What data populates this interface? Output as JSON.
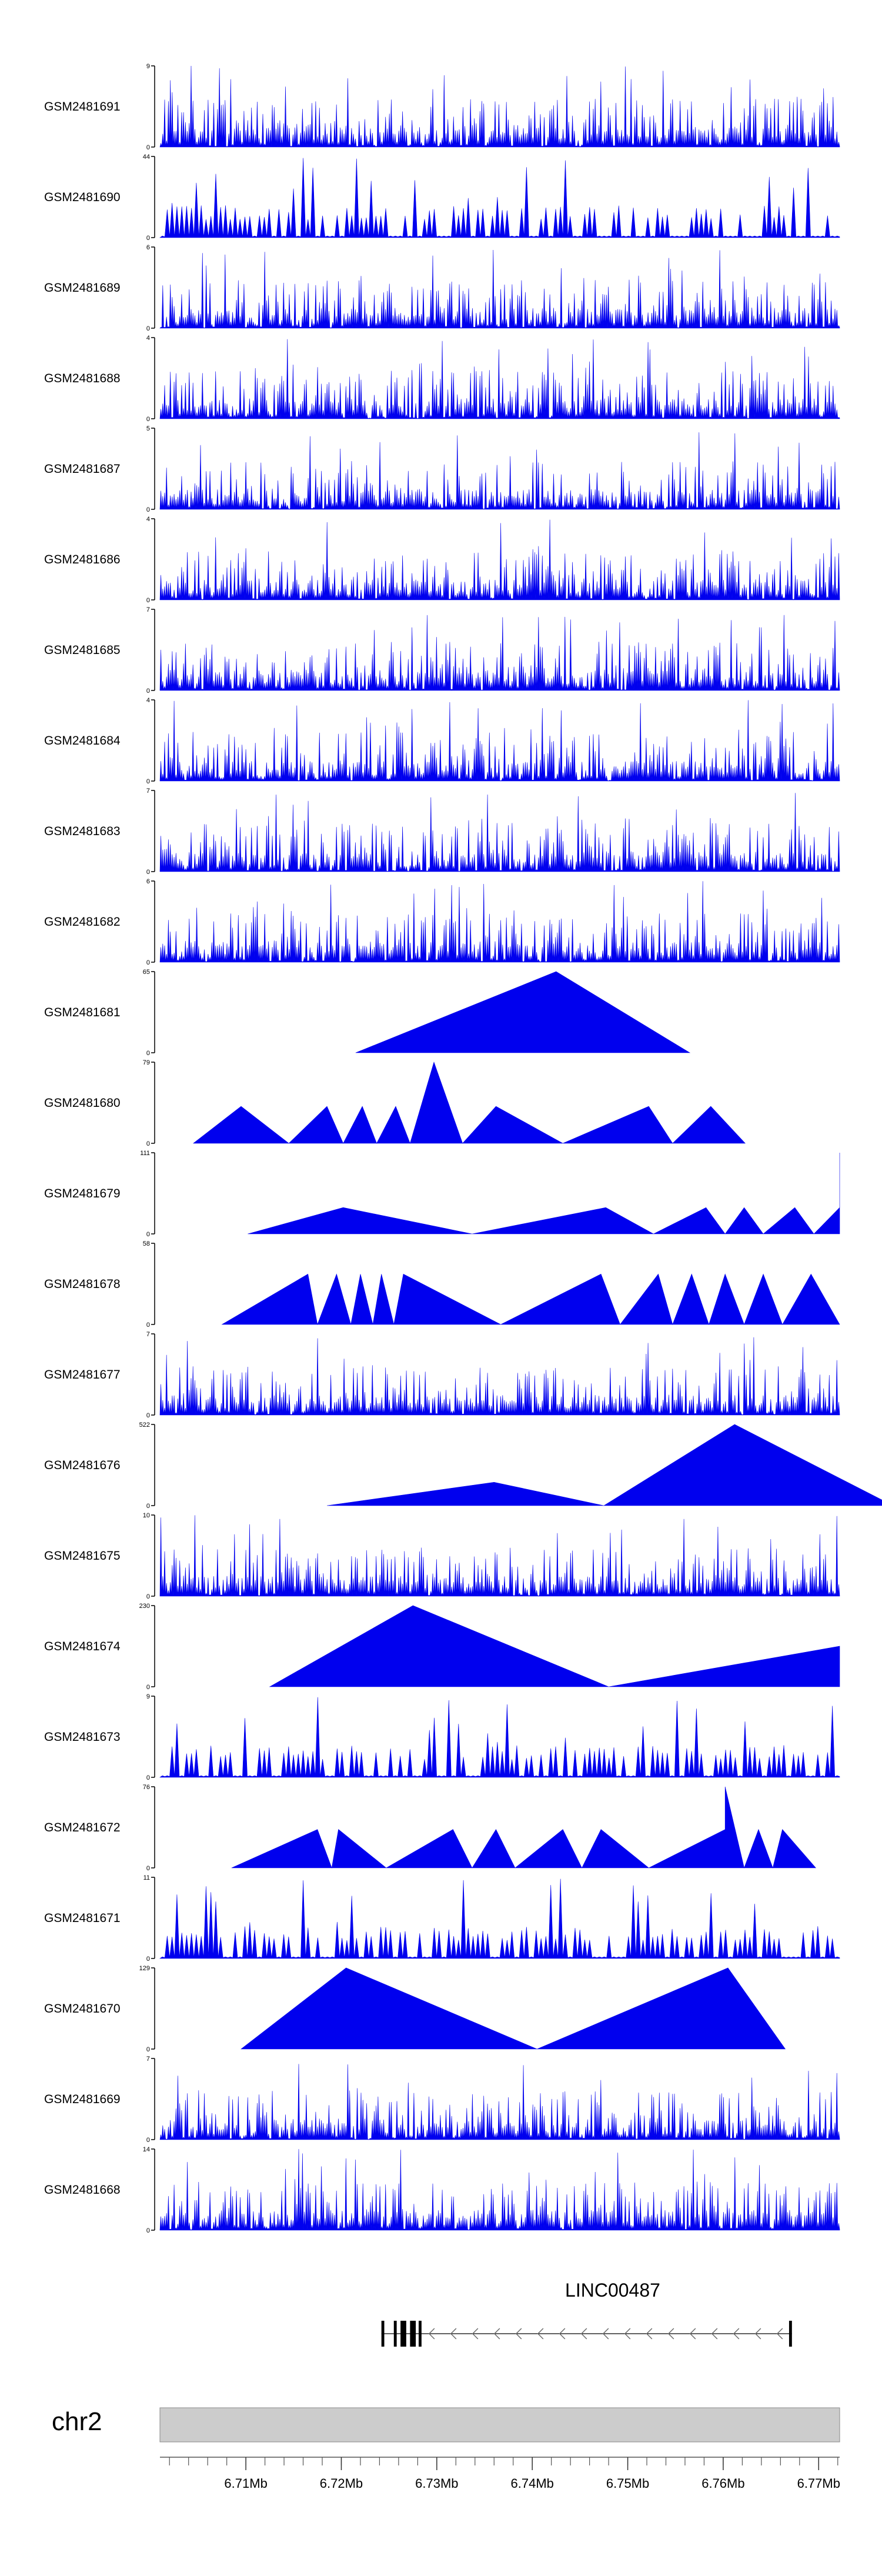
{
  "chart_data": {
    "type": "area",
    "colors": {
      "signal": "#0000ee",
      "axis": "#000000",
      "ideogram": "#cccccc",
      "gene": "#000000"
    },
    "tracks": [
      {
        "label": "GSM2481691",
        "ymax": "9",
        "ymin": "0",
        "max": 9,
        "style": "dense",
        "seed": 11
      },
      {
        "label": "GSM2481690",
        "ymax": "44",
        "ymin": "0",
        "max": 44,
        "style": "sparse",
        "seed": 12
      },
      {
        "label": "GSM2481689",
        "ymax": "6",
        "ymin": "0",
        "max": 6,
        "style": "dense",
        "seed": 13
      },
      {
        "label": "GSM2481688",
        "ymax": "4",
        "ymin": "0",
        "max": 4,
        "style": "dense",
        "seed": 14
      },
      {
        "label": "GSM2481687",
        "ymax": "5",
        "ymin": "0",
        "max": 5,
        "style": "dense",
        "seed": 15
      },
      {
        "label": "GSM2481686",
        "ymax": "4",
        "ymin": "0",
        "max": 4,
        "style": "dense",
        "seed": 16
      },
      {
        "label": "GSM2481685",
        "ymax": "7",
        "ymin": "0",
        "max": 7,
        "style": "dense",
        "seed": 17
      },
      {
        "label": "GSM2481684",
        "ymax": "4",
        "ymin": "0",
        "max": 4,
        "style": "dense",
        "seed": 18
      },
      {
        "label": "GSM2481683",
        "ymax": "7",
        "ymin": "0",
        "max": 7,
        "style": "dense",
        "seed": 19
      },
      {
        "label": "GSM2481682",
        "ymax": "6",
        "ymin": "0",
        "max": 6,
        "style": "dense",
        "seed": 20
      },
      {
        "label": "GSM2481681",
        "ymax": "65",
        "ymin": "0",
        "max": 65,
        "style": "peaks",
        "vertices": [
          [
            6.7215,
            0
          ],
          [
            6.7425,
            65
          ],
          [
            6.7565,
            0
          ]
        ]
      },
      {
        "label": "GSM2481680",
        "ymax": "79",
        "ymin": "0",
        "max": 79,
        "style": "peaks",
        "vertices": [
          [
            6.7045,
            0
          ],
          [
            6.7095,
            36
          ],
          [
            6.7145,
            0
          ],
          [
            6.7185,
            36
          ],
          [
            6.7202,
            0
          ],
          [
            6.7222,
            36
          ],
          [
            6.7237,
            0
          ],
          [
            6.7257,
            36
          ],
          [
            6.7272,
            0
          ],
          [
            6.7297,
            79
          ],
          [
            6.7327,
            0
          ],
          [
            6.7362,
            36
          ],
          [
            6.7432,
            0
          ],
          [
            6.7522,
            36
          ],
          [
            6.7547,
            0
          ],
          [
            6.7587,
            36
          ],
          [
            6.7623,
            0
          ]
        ]
      },
      {
        "label": "GSM2481679",
        "ymax": "111",
        "ymin": "0",
        "max": 111,
        "style": "peaks",
        "vertices": [
          [
            6.7102,
            0
          ],
          [
            6.7202,
            36
          ],
          [
            6.7337,
            0
          ],
          [
            6.7477,
            36
          ],
          [
            6.7527,
            0
          ],
          [
            6.7582,
            36
          ],
          [
            6.7602,
            0
          ],
          [
            6.7622,
            36
          ],
          [
            6.7642,
            0
          ],
          [
            6.7675,
            36
          ],
          [
            6.7695,
            0
          ],
          [
            6.7722,
            36
          ],
          [
            6.7722,
            111
          ],
          [
            6.7722,
            0
          ]
        ]
      },
      {
        "label": "GSM2481678",
        "ymax": "58",
        "ymin": "0",
        "max": 58,
        "style": "peaks",
        "vertices": [
          [
            6.7075,
            0
          ],
          [
            6.7165,
            36
          ],
          [
            6.7175,
            0
          ],
          [
            6.7195,
            36
          ],
          [
            6.721,
            0
          ],
          [
            6.722,
            36
          ],
          [
            6.7233,
            0
          ],
          [
            6.7242,
            36
          ],
          [
            6.7255,
            0
          ],
          [
            6.7265,
            36
          ],
          [
            6.7367,
            0
          ],
          [
            6.7472,
            36
          ],
          [
            6.7492,
            0
          ],
          [
            6.7532,
            36
          ],
          [
            6.7547,
            0
          ],
          [
            6.7567,
            36
          ],
          [
            6.7585,
            0
          ],
          [
            6.7602,
            36
          ],
          [
            6.7622,
            0
          ],
          [
            6.7642,
            36
          ],
          [
            6.7662,
            0
          ],
          [
            6.7692,
            36
          ],
          [
            6.7722,
            0
          ]
        ]
      },
      {
        "label": "GSM2481677",
        "ymax": "7",
        "ymin": "0",
        "max": 7,
        "style": "dense",
        "seed": 21
      },
      {
        "label": "GSM2481676",
        "ymax": "522",
        "ymin": "0",
        "max": 522,
        "style": "peaks",
        "vertices": [
          [
            6.7185,
            0
          ],
          [
            6.736,
            150
          ],
          [
            6.7475,
            0
          ],
          [
            6.7612,
            522
          ],
          [
            6.7778,
            0
          ]
        ]
      },
      {
        "label": "GSM2481675",
        "ymax": "10",
        "ymin": "0",
        "max": 10,
        "style": "dense",
        "seed": 22
      },
      {
        "label": "GSM2481674",
        "ymax": "230",
        "ymin": "0",
        "max": 230,
        "style": "peaks",
        "vertices": [
          [
            6.7125,
            0
          ],
          [
            6.7275,
            230
          ],
          [
            6.748,
            0
          ],
          [
            6.7722,
            115
          ],
          [
            6.7722,
            0
          ]
        ]
      },
      {
        "label": "GSM2481673",
        "ymax": "9",
        "ymin": "0",
        "max": 9,
        "style": "sparse",
        "seed": 23
      },
      {
        "label": "GSM2481672",
        "ymax": "76",
        "ymin": "0",
        "max": 76,
        "style": "peaks",
        "vertices": [
          [
            6.7085,
            0
          ],
          [
            6.7175,
            36
          ],
          [
            6.719,
            0
          ],
          [
            6.7197,
            36
          ],
          [
            6.7247,
            0
          ],
          [
            6.7317,
            36
          ],
          [
            6.7337,
            0
          ],
          [
            6.7362,
            36
          ],
          [
            6.7382,
            0
          ],
          [
            6.7432,
            36
          ],
          [
            6.7452,
            0
          ],
          [
            6.7472,
            36
          ],
          [
            6.7522,
            0
          ],
          [
            6.7602,
            36
          ],
          [
            6.7602,
            76
          ],
          [
            6.7622,
            0
          ],
          [
            6.7637,
            36
          ],
          [
            6.7652,
            0
          ],
          [
            6.7662,
            36
          ],
          [
            6.7697,
            0
          ]
        ]
      },
      {
        "label": "GSM2481671",
        "ymax": "11",
        "ymin": "0",
        "max": 11,
        "style": "sparse",
        "seed": 24
      },
      {
        "label": "GSM2481670",
        "ymax": "129",
        "ymin": "0",
        "max": 129,
        "style": "peaks",
        "vertices": [
          [
            6.7095,
            0
          ],
          [
            6.7205,
            129
          ],
          [
            6.7405,
            0
          ],
          [
            6.7605,
            129
          ],
          [
            6.7665,
            0
          ]
        ]
      },
      {
        "label": "GSM2481669",
        "ymax": "7",
        "ymin": "0",
        "max": 7,
        "style": "dense",
        "seed": 25
      },
      {
        "label": "GSM2481668",
        "ymax": "14",
        "ymin": "0",
        "max": 14,
        "style": "dense",
        "seed": 26
      }
    ],
    "gene": {
      "name": "LINC00487",
      "start": 6.7242,
      "end": 6.7672,
      "strand": "-",
      "exons": [
        [
          6.7242,
          6.7245
        ],
        [
          6.7255,
          6.7258
        ],
        [
          6.7262,
          6.7268
        ],
        [
          6.7272,
          6.7278
        ],
        [
          6.7281,
          6.7284
        ],
        [
          6.7669,
          6.7672
        ]
      ]
    },
    "ideogram": {
      "label": "chr2",
      "tick_labels": [
        "6.71Mb",
        "6.72Mb",
        "6.73Mb",
        "6.74Mb",
        "6.75Mb",
        "6.76Mb",
        "6.77Mb"
      ],
      "ticks": [
        6.71,
        6.72,
        6.73,
        6.74,
        6.75,
        6.76,
        6.77
      ],
      "minor_step": 0.002
    },
    "xlim": [
      6.701,
      6.7722
    ]
  }
}
